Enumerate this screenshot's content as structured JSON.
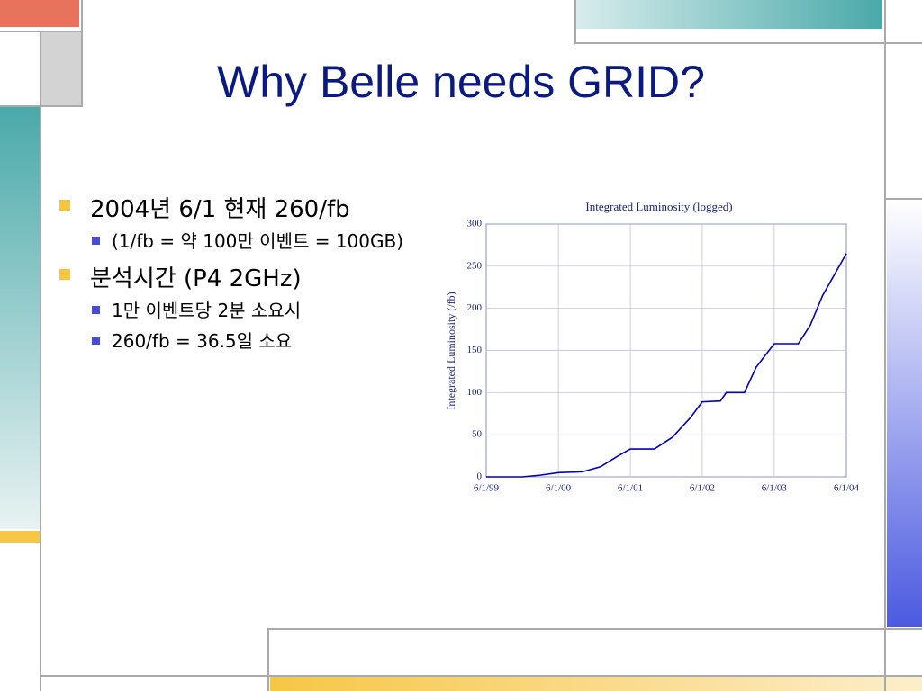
{
  "slide": {
    "title": "Why Belle needs GRID?",
    "bullets": [
      {
        "text": "2004년 6/1 현재 260/fb",
        "sub": [
          "(1/fb = 약 100만 이벤트 = 100GB)"
        ]
      },
      {
        "text": "분석시간 (P4 2GHz)",
        "sub": [
          "1만 이벤트당 2분 소요시",
          "260/fb = 36.5일 소요"
        ]
      }
    ]
  },
  "chart_data": {
    "type": "line",
    "title": "Integrated Luminosity (logged)",
    "y_label": "Integrated Luminosity (/fb)",
    "x": [
      "1999-06-01",
      "1999-12-01",
      "2000-03-01",
      "2000-06-01",
      "2000-10-01",
      "2001-01-01",
      "2001-04-01",
      "2001-06-01",
      "2001-10-01",
      "2002-01-01",
      "2002-04-01",
      "2002-06-01",
      "2002-09-01",
      "2002-10-01",
      "2003-01-01",
      "2003-03-01",
      "2003-06-01",
      "2003-10-01",
      "2003-12-01",
      "2004-02-01",
      "2004-06-01"
    ],
    "series": [
      {
        "name": "Integrated Luminosity",
        "color": "#0000b4",
        "values": [
          0,
          0,
          2,
          5,
          6,
          12,
          25,
          33,
          33,
          47,
          70,
          89,
          90,
          100,
          100,
          130,
          158,
          158,
          180,
          215,
          265
        ]
      }
    ],
    "xlim": [
      "1999-06-01",
      "2004-06-01"
    ],
    "xticks": [
      {
        "value": "1999-06-01",
        "label": "6/1/99"
      },
      {
        "value": "2000-06-01",
        "label": "6/1/00"
      },
      {
        "value": "2001-06-01",
        "label": "6/1/01"
      },
      {
        "value": "2002-06-01",
        "label": "6/1/02"
      },
      {
        "value": "2003-06-01",
        "label": "6/1/03"
      },
      {
        "value": "2004-06-01",
        "label": "6/1/04"
      }
    ],
    "ylim": [
      0,
      300
    ],
    "yticks": [
      0,
      50,
      100,
      150,
      200,
      250,
      300
    ],
    "grid": true
  }
}
